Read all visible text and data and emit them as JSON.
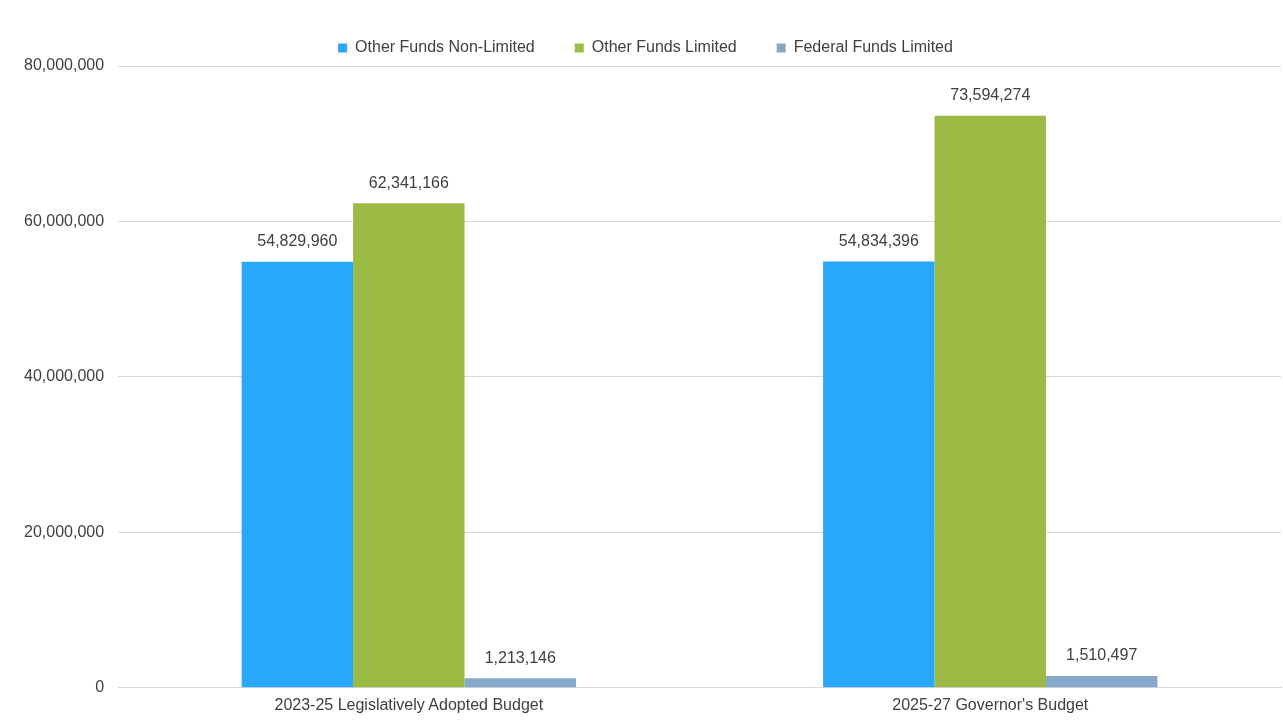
{
  "chart_data": {
    "type": "bar",
    "categories": [
      "2023-25 Legislatively Adopted Budget",
      "2025-27 Governor's Budget"
    ],
    "series": [
      {
        "name": "Other Funds Non-Limited",
        "color": "#29a8fb",
        "values": [
          54829960,
          54834396
        ],
        "value_labels": [
          "54,829,960",
          "54,834,396"
        ]
      },
      {
        "name": "Other Funds Limited",
        "color": "#9bbb45",
        "values": [
          62341166,
          73594274
        ],
        "value_labels": [
          "62,341,166",
          "73,594,274"
        ]
      },
      {
        "name": "Federal Funds Limited",
        "color": "#87a9c9",
        "values": [
          1213146,
          1510497
        ],
        "value_labels": [
          "1,213,146",
          "1,510,497"
        ]
      }
    ],
    "ylim": [
      0,
      80000000
    ],
    "yticks": [
      0,
      {
        "value": 20000000,
        "label": "20,000,000"
      },
      {
        "value": 40000000,
        "label": "40,000,000"
      },
      {
        "value": 60000000,
        "label": "60,000,000"
      },
      {
        "value": 80000000,
        "label": "80,000,000"
      }
    ],
    "grid": "y",
    "legend": "top"
  }
}
